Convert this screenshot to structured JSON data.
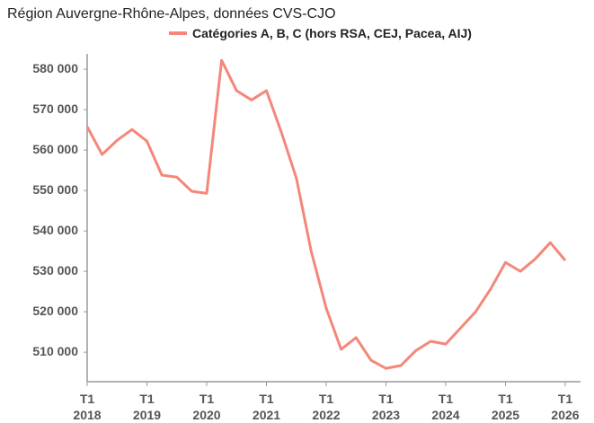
{
  "chart_data": {
    "type": "line",
    "title": "Région Auvergne-Rhône-Alpes, données CVS-CJO",
    "categories": [
      "T1 2018",
      null,
      null,
      null,
      "T1 2019",
      null,
      null,
      null,
      "T1 2020",
      null,
      null,
      null,
      "T1 2021",
      null,
      null,
      null,
      "T1 2022",
      null,
      null,
      null,
      "T1 2023",
      null,
      null,
      null,
      "T1 2024",
      null,
      null,
      null,
      "T1 2025",
      null,
      null,
      null,
      "T1 2026"
    ],
    "series": [
      {
        "name": "Catégories A, B, C (hors RSA, CEJ, Pacea, AIJ)",
        "color": "#f4877a",
        "values": [
          565800,
          558900,
          562400,
          565100,
          562200,
          553800,
          553300,
          549800,
          549300,
          582200,
          574700,
          572400,
          574700,
          564400,
          553100,
          534900,
          520900,
          510700,
          513600,
          508000,
          506000,
          506700,
          510400,
          512700,
          512000,
          516000,
          520000,
          525600,
          532200,
          530000,
          533100,
          537100,
          532700
        ]
      }
    ],
    "ylim": [
      502700,
      583800
    ],
    "yticks": [
      {
        "value": 510000,
        "label": "510 000"
      },
      {
        "value": 520000,
        "label": "520 000"
      },
      {
        "value": 530000,
        "label": "530 000"
      },
      {
        "value": 540000,
        "label": "540 000"
      },
      {
        "value": 550000,
        "label": "550 000"
      },
      {
        "value": 560000,
        "label": "560 000"
      },
      {
        "value": 570000,
        "label": "570 000"
      },
      {
        "value": 580000,
        "label": "580 000"
      }
    ],
    "grid": false
  }
}
